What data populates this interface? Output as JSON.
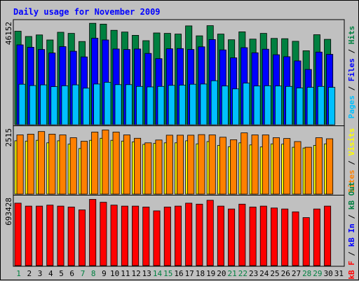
{
  "chart_data": {
    "type": "bar",
    "title": "Daily usage for November 2009",
    "categories": [
      "1",
      "2",
      "3",
      "4",
      "5",
      "6",
      "7",
      "8",
      "9",
      "10",
      "11",
      "12",
      "13",
      "14",
      "15",
      "16",
      "17",
      "18",
      "19",
      "20",
      "21",
      "22",
      "23",
      "24",
      "25",
      "26",
      "27",
      "28",
      "29",
      "30",
      "31"
    ],
    "weekend_days": [
      "1",
      "7",
      "8",
      "14",
      "15",
      "21",
      "22",
      "28",
      "29"
    ],
    "panels": [
      {
        "id": "hits-files-pages",
        "max_label": "46152",
        "ylim": [
          0,
          46152
        ],
        "series": [
          {
            "name": "Hits",
            "color": "#008040",
            "values": [
              42500,
              40100,
              40800,
              38500,
              42000,
              41500,
              37800,
              46100,
              45700,
              42900,
              42100,
              40600,
              38200,
              41700,
              41500,
              41200,
              44900,
              40400,
              45000,
              41200,
              38600,
              42200,
              38900,
              41500,
              39200,
              39100,
              37900,
              33600,
              40900,
              38800,
              null
            ]
          },
          {
            "name": "Files",
            "color": "#0000ff",
            "values": [
              36300,
              35200,
              34200,
              32600,
              35500,
              33400,
              30800,
              39300,
              38500,
              34400,
              34200,
              34400,
              32400,
              30000,
              34500,
              34600,
              34200,
              35400,
              38700,
              34000,
              30400,
              35000,
              32700,
              34300,
              31800,
              30900,
              29000,
              25100,
              33000,
              32000,
              null
            ]
          },
          {
            "name": "Pages",
            "color": "#00c0ff",
            "values": [
              18400,
              17800,
              18100,
              17300,
              17700,
              18100,
              16600,
              18500,
              19300,
              18200,
              18200,
              17400,
              17200,
              17400,
              17900,
              18000,
              18400,
              18500,
              20000,
              17600,
              16300,
              18900,
              17600,
              17700,
              17600,
              17400,
              16700,
              17000,
              17400,
              17000,
              null
            ]
          }
        ]
      },
      {
        "id": "visits-sites",
        "max_label": "2515",
        "ylim": [
          0,
          2515
        ],
        "series": [
          {
            "name": "Visits",
            "color": "#ffff00",
            "values": [
              2080,
              2070,
              2100,
              2000,
              2080,
              1950,
              1780,
              2100,
              2180,
              2100,
              2070,
              2040,
              1940,
              1980,
              2000,
              2000,
              2080,
              1960,
              2050,
              1900,
              1850,
              2000,
              1920,
              1840,
              1960,
              1950,
              1830,
              1800,
              1900,
              1960,
              null
            ]
          },
          {
            "name": "Sites",
            "color": "#ff8000",
            "values": [
              2310,
              2340,
              2440,
              2340,
              2310,
              2200,
              2060,
              2420,
              2500,
              2420,
              2310,
              2180,
              2000,
              2110,
              2300,
              2300,
              2300,
              2320,
              2310,
              2220,
              2120,
              2390,
              2310,
              2310,
              2200,
              2170,
              2050,
              1830,
              2200,
              2160,
              null
            ]
          }
        ]
      },
      {
        "id": "kb-in-out-f",
        "max_label": "693428",
        "ylim": [
          0,
          693428
        ],
        "series": [
          {
            "name": "KBytes",
            "color": "#ff0000",
            "values": [
              650000,
              620000,
              620000,
              630000,
              620000,
              610000,
              580000,
              690000,
              660000,
              630000,
              620000,
              620000,
              610000,
              570000,
              610000,
              620000,
              650000,
              640000,
              680000,
              620000,
              590000,
              640000,
              610000,
              620000,
              600000,
              590000,
              560000,
              500000,
              590000,
              620000,
              null
            ]
          }
        ]
      }
    ],
    "legend": [
      {
        "items": [
          {
            "text": "Pages",
            "color": "#00c0ff"
          },
          {
            "text": " / ",
            "color": "#000000"
          },
          {
            "text": "Files",
            "color": "#0000ff"
          },
          {
            "text": " / ",
            "color": "#000000"
          },
          {
            "text": "Hits",
            "color": "#008040"
          }
        ]
      },
      {
        "items": [
          {
            "text": "Sites",
            "color": "#ff8000"
          },
          {
            "text": " / ",
            "color": "#000000"
          },
          {
            "text": "Visits",
            "color": "#ffff00"
          }
        ]
      },
      {
        "items": [
          {
            "text": "kB F",
            "color": "#ff0000"
          },
          {
            "text": " / ",
            "color": "#000000"
          },
          {
            "text": "kB In",
            "color": "#0000ff"
          },
          {
            "text": " / ",
            "color": "#000000"
          },
          {
            "text": "kB Out",
            "color": "#008040"
          }
        ]
      }
    ],
    "colors": {
      "background": "#c0c0c0",
      "title": "#0000ff",
      "weekend_label": "#008040",
      "weekday_label": "#000000"
    }
  }
}
